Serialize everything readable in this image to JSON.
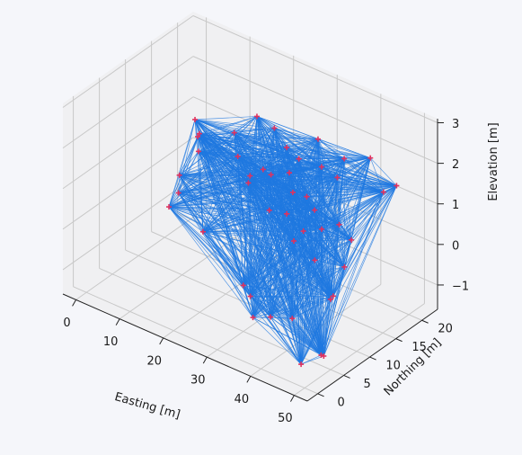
{
  "chart_data": {
    "type": "3d-network",
    "title": "",
    "xlabel": "Easting [m]",
    "ylabel": "Northing [m]",
    "zlabel": "Elevation [m]",
    "xticks": [
      0,
      10,
      20,
      30,
      40,
      50
    ],
    "yticks": [
      0,
      5,
      10,
      15,
      20
    ],
    "zticks": [
      -1,
      0,
      1,
      2,
      3
    ],
    "xticklabels": [
      "0",
      "10",
      "20",
      "30",
      "40",
      "50"
    ],
    "yticklabels": [
      "0",
      "5",
      "10",
      "15",
      "20"
    ],
    "zticklabels": [
      "−1",
      "0",
      "1",
      "2",
      "3"
    ],
    "xlim": [
      -3,
      53
    ],
    "ylim": [
      -2,
      23
    ],
    "zlim": [
      -1.6,
      3.1
    ],
    "grid": true,
    "edges": "all pairs of points connected",
    "colors": {
      "points": "#e0325f",
      "edges": "#1f78e0",
      "pane": "#ebebeb",
      "grid": "#c8c8c8"
    },
    "points": [
      [
        2,
        20,
        0.6
      ],
      [
        3,
        19,
        0.3
      ],
      [
        1,
        20,
        0.9
      ],
      [
        4,
        18,
        0.8
      ],
      [
        1,
        17,
        -0.2
      ],
      [
        1,
        15,
        -0.8
      ],
      [
        2,
        16,
        -0.5
      ],
      [
        10,
        20,
        1.0
      ],
      [
        14,
        21,
        1.5
      ],
      [
        18,
        21,
        1.4
      ],
      [
        22,
        20,
        1.2
      ],
      [
        28,
        21,
        1.6
      ],
      [
        30,
        20,
        1.1
      ],
      [
        34,
        21,
        1.4
      ],
      [
        40,
        21,
        1.7
      ],
      [
        43,
        21,
        1.0
      ],
      [
        46,
        21,
        1.3
      ],
      [
        12,
        19,
        0.6
      ],
      [
        16,
        18,
        0.4
      ],
      [
        19,
        18,
        0.7
      ],
      [
        22,
        17,
        0.8
      ],
      [
        25,
        18,
        0.9
      ],
      [
        27,
        17,
        0.6
      ],
      [
        29,
        18,
        0.5
      ],
      [
        32,
        17,
        0.4
      ],
      [
        24,
        15,
        0.2
      ],
      [
        28,
        15,
        0.3
      ],
      [
        33,
        14,
        0.2
      ],
      [
        36,
        15,
        0.3
      ],
      [
        40,
        15,
        0.6
      ],
      [
        44,
        14,
        0.5
      ],
      [
        32,
        13,
        0.0
      ],
      [
        38,
        12,
        -0.1
      ],
      [
        46,
        11,
        0.2
      ],
      [
        47,
        8,
        -0.2
      ],
      [
        10,
        14,
        -0.9
      ],
      [
        24,
        10,
        -1.2
      ],
      [
        31,
        6,
        -1.3
      ],
      [
        28,
        8,
        -1.1
      ],
      [
        35,
        6,
        -1.1
      ],
      [
        40,
        6,
        -0.9
      ],
      [
        48,
        1,
        -1.2
      ],
      [
        52,
        2,
        -0.9
      ],
      [
        49,
        4,
        -1.2
      ],
      [
        44,
        10,
        -0.6
      ],
      [
        26,
        19,
        1.2
      ],
      [
        18,
        16,
        0.5
      ],
      [
        36,
        18,
        1.3
      ]
    ]
  }
}
